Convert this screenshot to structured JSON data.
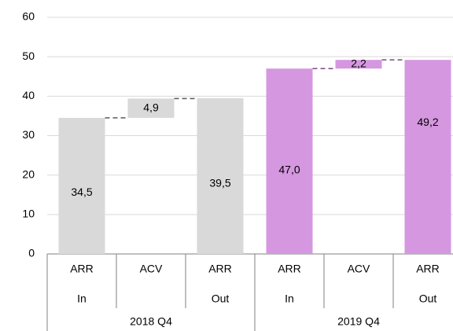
{
  "chart_data": {
    "type": "waterfall",
    "groups": [
      {
        "name": "2018 Q4",
        "color": "#d9d9d9",
        "connector_color": "#595959",
        "categories": [
          "ARR",
          "ACV",
          "ARR"
        ],
        "sublabels": [
          "In",
          null,
          "Out"
        ],
        "measure": [
          "absolute",
          "relative",
          "total"
        ],
        "values": [
          34.5,
          4.9,
          39.5
        ],
        "value_labels": [
          "34,5",
          "4,9",
          "39,5"
        ]
      },
      {
        "name": "2019 Q4",
        "color": "#d597e0",
        "connector_color": "#7a4b80",
        "categories": [
          "ARR",
          "ACV",
          "ARR"
        ],
        "sublabels": [
          "In",
          null,
          "Out"
        ],
        "measure": [
          "absolute",
          "relative",
          "total"
        ],
        "values": [
          47.0,
          2.2,
          49.2
        ],
        "value_labels": [
          "47,0",
          "2,2",
          "49,2"
        ]
      }
    ],
    "ylim": [
      0,
      60
    ],
    "yticks": [
      0,
      10,
      20,
      30,
      40,
      50,
      60
    ],
    "grid": true
  }
}
